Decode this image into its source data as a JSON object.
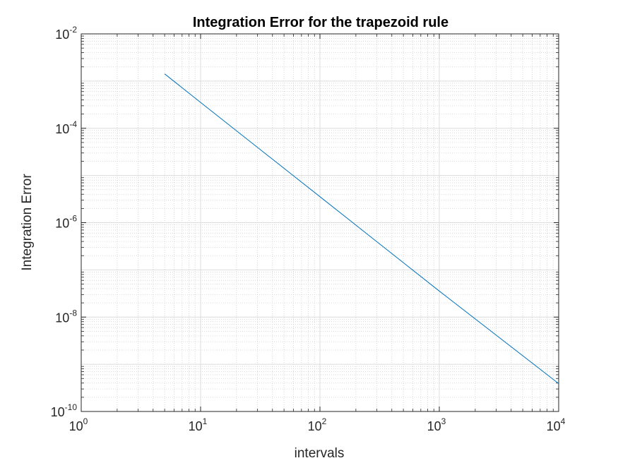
{
  "chart_data": {
    "type": "line",
    "title": "Integration Error for the trapezoid rule",
    "xlabel": "intervals",
    "ylabel": "Integration Error",
    "xscale": "log",
    "yscale": "log",
    "xlim": [
      1,
      10000
    ],
    "ylim": [
      1e-10,
      0.01
    ],
    "grid": true,
    "minor_grid": true,
    "x_ticks": [
      {
        "base": "10",
        "exp": "0"
      },
      {
        "base": "10",
        "exp": "1"
      },
      {
        "base": "10",
        "exp": "2"
      },
      {
        "base": "10",
        "exp": "3"
      },
      {
        "base": "10",
        "exp": "4"
      }
    ],
    "y_ticks": [
      {
        "base": "10",
        "exp": "-10"
      },
      {
        "base": "10",
        "exp": "-8"
      },
      {
        "base": "10",
        "exp": "-6"
      },
      {
        "base": "10",
        "exp": "-4"
      },
      {
        "base": "10",
        "exp": "-2"
      }
    ],
    "series": [
      {
        "color": "#0072BD",
        "x": [
          5,
          10,
          100,
          1000,
          10000
        ],
        "y": [
          0.00142,
          0.000353,
          3.55e-06,
          3.55e-08,
          3.9e-10
        ]
      }
    ]
  }
}
